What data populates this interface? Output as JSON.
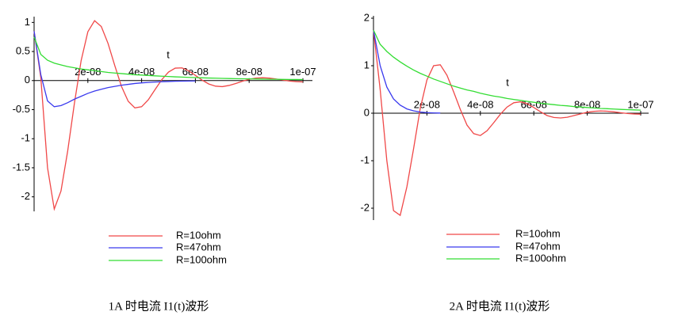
{
  "chart_data": [
    {
      "type": "line",
      "title": "1A 时电流 I1(t)波形",
      "xlabel": "t",
      "x": [
        0,
        2.5e-09,
        5e-09,
        7.5e-09,
        1e-08,
        1.25e-08,
        1.5e-08,
        1.75e-08,
        2e-08,
        2.25e-08,
        2.5e-08,
        2.75e-08,
        3e-08,
        3.25e-08,
        3.5e-08,
        3.75e-08,
        4e-08,
        4.25e-08,
        4.5e-08,
        4.75e-08,
        5e-08,
        5.25e-08,
        5.5e-08,
        5.75e-08,
        6e-08,
        6.25e-08,
        6.5e-08,
        6.75e-08,
        7e-08,
        7.25e-08,
        7.5e-08,
        7.75e-08,
        8e-08,
        8.25e-08,
        8.5e-08,
        8.75e-08,
        9e-08,
        9.25e-08,
        9.5e-08,
        9.75e-08,
        1e-07
      ],
      "series": [
        {
          "name": "R=10ohm",
          "color": "#f04848",
          "values": [
            0.85,
            0.05,
            -1.5,
            -2.21,
            -1.9,
            -1.21,
            -0.39,
            0.345,
            0.84,
            1.03,
            0.93,
            0.64,
            0.26,
            -0.1,
            -0.355,
            -0.47,
            -0.45,
            -0.33,
            -0.155,
            0.016,
            0.146,
            0.214,
            0.218,
            0.168,
            0.09,
            0.008,
            -0.059,
            -0.096,
            -0.104,
            -0.084,
            -0.05,
            -0.011,
            0.022,
            0.043,
            0.049,
            0.042,
            0.027,
            0.009,
            -0.008,
            -0.018,
            -0.023
          ]
        },
        {
          "name": "R=47ohm",
          "color": "#3a3aee",
          "values": [
            0.85,
            0.1,
            -0.35,
            -0.45,
            -0.43,
            -0.38,
            -0.32,
            -0.27,
            -0.22,
            -0.18,
            -0.15,
            -0.12,
            -0.1,
            -0.08,
            -0.065,
            -0.05,
            -0.04,
            -0.032,
            -0.025,
            -0.02,
            -0.016,
            -0.012,
            -0.01,
            -0.008,
            -0.006,
            null,
            null,
            null,
            null,
            null,
            null,
            null,
            null,
            null,
            null,
            null,
            null,
            null,
            null,
            null,
            null
          ]
        },
        {
          "name": "R=100ohm",
          "color": "#33dd33",
          "values": [
            0.75,
            0.45,
            0.35,
            0.3,
            0.27,
            0.24,
            0.22,
            0.2,
            0.185,
            0.17,
            0.155,
            0.14,
            0.13,
            0.12,
            0.11,
            0.1,
            0.095,
            0.088,
            0.081,
            0.075,
            0.07,
            0.064,
            0.06,
            0.055,
            0.051,
            0.047,
            0.044,
            0.041,
            0.038,
            0.035,
            0.033,
            0.031,
            0.029,
            0.027,
            0.025,
            0.023,
            0.022,
            0.02,
            0.019,
            0.018,
            0.017
          ]
        }
      ],
      "xlim": [
        0,
        1e-07
      ],
      "xticks": [
        {
          "value": 2e-08,
          "label": "2e-08"
        },
        {
          "value": 4e-08,
          "label": "4e-08"
        },
        {
          "value": 6e-08,
          "label": "6e-08"
        },
        {
          "value": 8e-08,
          "label": "8e-08"
        },
        {
          "value": 1e-07,
          "label": "1e-07"
        }
      ],
      "ylim": [
        -2.25,
        1.1
      ],
      "yticks": [
        -2,
        -1.5,
        -1,
        -0.5,
        0,
        0.5,
        1
      ]
    },
    {
      "type": "line",
      "title": "2A 时电流 I1(t)波形",
      "xlabel": "t",
      "x": [
        0,
        2.5e-09,
        5e-09,
        7.5e-09,
        1e-08,
        1.25e-08,
        1.5e-08,
        1.75e-08,
        2e-08,
        2.25e-08,
        2.5e-08,
        2.75e-08,
        3e-08,
        3.25e-08,
        3.5e-08,
        3.75e-08,
        4e-08,
        4.25e-08,
        4.5e-08,
        4.75e-08,
        5e-08,
        5.25e-08,
        5.5e-08,
        5.75e-08,
        6e-08,
        6.25e-08,
        6.5e-08,
        6.75e-08,
        7e-08,
        7.25e-08,
        7.5e-08,
        7.75e-08,
        8e-08,
        8.25e-08,
        8.5e-08,
        8.75e-08,
        9e-08,
        9.25e-08,
        9.5e-08,
        9.75e-08,
        1e-07
      ],
      "series": [
        {
          "name": "R=10ohm",
          "color": "#f04848",
          "values": [
            1.75,
            0.5,
            -1.0,
            -2.05,
            -2.15,
            -1.55,
            -0.75,
            0.1,
            0.7,
            1.0,
            1.02,
            0.8,
            0.45,
            0.08,
            -0.25,
            -0.43,
            -0.47,
            -0.37,
            -0.2,
            -0.02,
            0.13,
            0.22,
            0.24,
            0.2,
            0.12,
            0.03,
            -0.05,
            -0.09,
            -0.1,
            -0.085,
            -0.05,
            -0.015,
            0.02,
            0.04,
            0.048,
            0.042,
            0.028,
            0.01,
            -0.006,
            -0.016,
            -0.02
          ]
        },
        {
          "name": "R=47ohm",
          "color": "#3a3aee",
          "values": [
            1.75,
            1.0,
            0.55,
            0.3,
            0.17,
            0.09,
            0.05,
            0.025,
            0.012,
            0.006,
            0.003,
            null,
            null,
            null,
            null,
            null,
            null,
            null,
            null,
            null,
            null,
            null,
            null,
            null,
            null,
            null,
            null,
            null,
            null,
            null,
            null,
            null,
            null,
            null,
            null,
            null,
            null,
            null,
            null,
            null,
            null
          ]
        },
        {
          "name": "R=100ohm",
          "color": "#33dd33",
          "values": [
            1.75,
            1.45,
            1.3,
            1.18,
            1.08,
            0.99,
            0.91,
            0.84,
            0.78,
            0.72,
            0.67,
            0.62,
            0.57,
            0.53,
            0.49,
            0.46,
            0.42,
            0.39,
            0.36,
            0.34,
            0.31,
            0.29,
            0.27,
            0.25,
            0.23,
            0.21,
            0.195,
            0.18,
            0.165,
            0.155,
            0.14,
            0.13,
            0.12,
            0.11,
            0.1,
            0.095,
            0.088,
            0.08,
            0.075,
            0.07,
            0.065
          ]
        }
      ],
      "xlim": [
        0,
        1e-07
      ],
      "xticks": [
        {
          "value": 2e-08,
          "label": "2e-08"
        },
        {
          "value": 4e-08,
          "label": "4e-08"
        },
        {
          "value": 6e-08,
          "label": "6e-08"
        },
        {
          "value": 8e-08,
          "label": "8e-08"
        },
        {
          "value": 1e-07,
          "label": "1e-07"
        }
      ],
      "ylim": [
        -2.25,
        2.05
      ],
      "yticks": [
        -2,
        -1,
        0,
        1,
        2
      ]
    }
  ]
}
